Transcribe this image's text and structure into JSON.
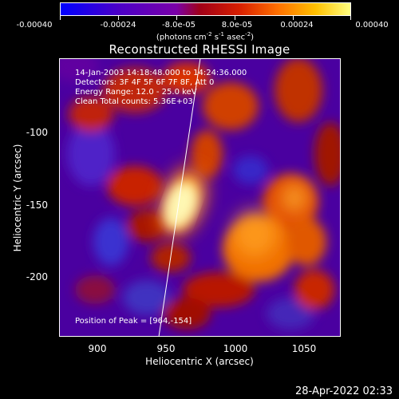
{
  "colorbar": {
    "ticks": [
      "-0.00040",
      "-0.00024",
      "-8.0e-05",
      "8.0e-05",
      "0.00024",
      "0.00040"
    ],
    "units_prefix": "(photons cm",
    "units_exp1": "-2",
    "units_mid": " s",
    "units_exp2": "-1",
    "units_mid2": " asec",
    "units_exp3": "-2",
    "units_suffix": ")"
  },
  "title": "Reconstructed RHESSI Image",
  "annotations": {
    "time_range": "14-Jan-2003 14:18:48.000 to 14:24:36.000",
    "detectors": "Detectors: 3F 4F 5F 6F 7F 8F, Att 0",
    "energy_range": "Energy Range: 12.0 - 25.0 keV",
    "method": "Clean    Total counts: 5.36E+03",
    "peak": "Position of Peak = [964,-154]"
  },
  "axes": {
    "xlabel": "Heliocentric X (arcsec)",
    "ylabel": "Heliocentric Y (arcsec)",
    "xticks": [
      "900",
      "950",
      "1000",
      "1050"
    ],
    "yticks": [
      "-100",
      "-150",
      "-200"
    ]
  },
  "timestamp": "28-Apr-2022 02:33",
  "colors": {
    "background": "#000000",
    "text": "#ffffff",
    "limb_line": "#ffffff"
  }
}
